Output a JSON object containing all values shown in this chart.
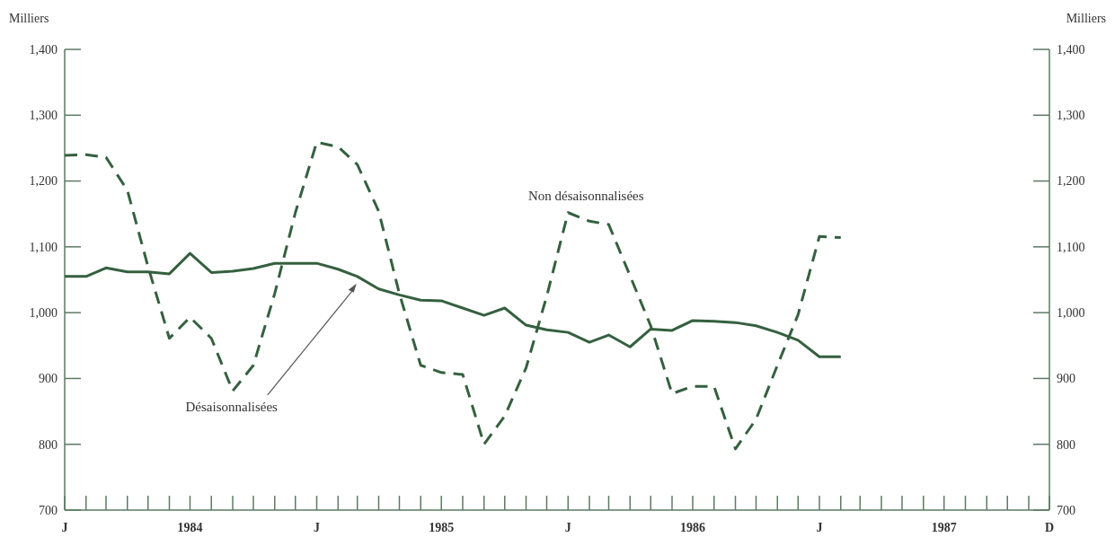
{
  "chart_data": {
    "type": "line",
    "ylabel": "Milliers",
    "y2label": "Milliers",
    "grid": false,
    "x": [
      "1984-01",
      "1984-02",
      "1984-03",
      "1984-04",
      "1984-05",
      "1984-06",
      "1984-07",
      "1984-08",
      "1984-09",
      "1984-10",
      "1984-11",
      "1984-12",
      "1985-01",
      "1985-02",
      "1985-03",
      "1985-04",
      "1985-05",
      "1985-06",
      "1985-07",
      "1985-08",
      "1985-09",
      "1985-10",
      "1985-11",
      "1985-12",
      "1986-01",
      "1986-02",
      "1986-03",
      "1986-04",
      "1986-05",
      "1986-06",
      "1986-07",
      "1986-08",
      "1986-09",
      "1986-10",
      "1986-11",
      "1986-12",
      "1987-01",
      "1987-02"
    ],
    "xlim": [
      "1984-01",
      "1987-12"
    ],
    "xticks": [
      {
        "value": "1984-01",
        "label": "J"
      },
      {
        "value": "1984-02",
        "label": null
      },
      {
        "value": "1984-03",
        "label": null
      },
      {
        "value": "1984-04",
        "label": null
      },
      {
        "value": "1984-05",
        "label": null
      },
      {
        "value": "1984-06",
        "label": null
      },
      {
        "value": "1984-07",
        "label": "1984"
      },
      {
        "value": "1984-08",
        "label": null
      },
      {
        "value": "1984-09",
        "label": null
      },
      {
        "value": "1984-10",
        "label": null
      },
      {
        "value": "1984-11",
        "label": null
      },
      {
        "value": "1984-12",
        "label": null
      },
      {
        "value": "1985-01",
        "label": "J"
      },
      {
        "value": "1985-02",
        "label": null
      },
      {
        "value": "1985-03",
        "label": null
      },
      {
        "value": "1985-04",
        "label": null
      },
      {
        "value": "1985-05",
        "label": null
      },
      {
        "value": "1985-06",
        "label": null
      },
      {
        "value": "1985-07",
        "label": "1985"
      },
      {
        "value": "1985-08",
        "label": null
      },
      {
        "value": "1985-09",
        "label": null
      },
      {
        "value": "1985-10",
        "label": null
      },
      {
        "value": "1985-11",
        "label": null
      },
      {
        "value": "1985-12",
        "label": null
      },
      {
        "value": "1986-01",
        "label": "J"
      },
      {
        "value": "1986-02",
        "label": null
      },
      {
        "value": "1986-03",
        "label": null
      },
      {
        "value": "1986-04",
        "label": null
      },
      {
        "value": "1986-05",
        "label": null
      },
      {
        "value": "1986-06",
        "label": null
      },
      {
        "value": "1986-07",
        "label": "1986"
      },
      {
        "value": "1986-08",
        "label": null
      },
      {
        "value": "1986-09",
        "label": null
      },
      {
        "value": "1986-10",
        "label": null
      },
      {
        "value": "1986-11",
        "label": null
      },
      {
        "value": "1986-12",
        "label": null
      },
      {
        "value": "1987-01",
        "label": "J"
      },
      {
        "value": "1987-02",
        "label": null
      },
      {
        "value": "1987-03",
        "label": null
      },
      {
        "value": "1987-04",
        "label": null
      },
      {
        "value": "1987-05",
        "label": null
      },
      {
        "value": "1987-06",
        "label": null
      },
      {
        "value": "1987-07",
        "label": "1987"
      },
      {
        "value": "1987-08",
        "label": null
      },
      {
        "value": "1987-09",
        "label": null
      },
      {
        "value": "1987-10",
        "label": null
      },
      {
        "value": "1987-11",
        "label": null
      },
      {
        "value": "1987-12",
        "label": "D"
      }
    ],
    "ylim": [
      700,
      1400
    ],
    "yticks": [
      {
        "value": 700,
        "label": "700"
      },
      {
        "value": 800,
        "label": "800"
      },
      {
        "value": 900,
        "label": "900"
      },
      {
        "value": 1000,
        "label": "1,000"
      },
      {
        "value": 1100,
        "label": "1,100"
      },
      {
        "value": 1200,
        "label": "1,200"
      },
      {
        "value": 1300,
        "label": "1,300"
      },
      {
        "value": 1400,
        "label": "1,400"
      }
    ],
    "y2lim": [
      700,
      1400
    ],
    "y2ticks": [
      {
        "value": 700,
        "label": "700"
      },
      {
        "value": 800,
        "label": "800"
      },
      {
        "value": 900,
        "label": "900"
      },
      {
        "value": 1000,
        "label": "1,000"
      },
      {
        "value": 1100,
        "label": "1,100"
      },
      {
        "value": 1200,
        "label": "1,200"
      },
      {
        "value": 1300,
        "label": "1,300"
      },
      {
        "value": 1400,
        "label": "1,400"
      }
    ],
    "series": [
      {
        "name": "Non désaisonnalisées",
        "color": "#35603f",
        "line_style": "dashed",
        "values": [
          1239,
          1240,
          1236,
          1186,
          1070,
          961,
          993,
          961,
          881,
          920,
          1029,
          1152,
          1259,
          1252,
          1225,
          1154,
          1029,
          920,
          909,
          906,
          800,
          843,
          916,
          1025,
          1152,
          1139,
          1134,
          1056,
          980,
          877,
          888,
          888,
          793,
          838,
          920,
          997,
          1116,
          1114
        ]
      },
      {
        "name": "Désaisonnalisées",
        "color": "#35603f",
        "line_style": "solid",
        "values": [
          1055,
          1055,
          1068,
          1062,
          1062,
          1059,
          1090,
          1061,
          1063,
          1067,
          1075,
          1075,
          1075,
          1066,
          1055,
          1036,
          1027,
          1019,
          1018,
          1007,
          996,
          1007,
          981,
          974,
          970,
          955,
          966,
          948,
          975,
          973,
          988,
          987,
          985,
          980,
          970,
          958,
          933,
          933
        ]
      }
    ]
  }
}
